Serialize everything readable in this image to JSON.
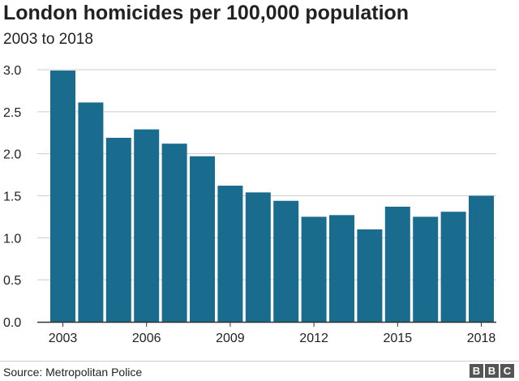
{
  "header": {
    "title": "London homicides per 100,000 population",
    "subtitle": "2003 to 2018"
  },
  "footer": {
    "source": "Source: Metropolitan Police",
    "logo_letters": [
      "B",
      "B",
      "C"
    ]
  },
  "colors": {
    "bar": "#1a6c8e",
    "grid": "#cccccc",
    "axis": "#333333"
  },
  "chart_data": {
    "type": "bar",
    "title": "London homicides per 100,000 population",
    "subtitle": "2003 to 2018",
    "categories": [
      "2003",
      "2004",
      "2005",
      "2006",
      "2007",
      "2008",
      "2009",
      "2010",
      "2011",
      "2012",
      "2013",
      "2014",
      "2015",
      "2016",
      "2017",
      "2018"
    ],
    "values": [
      2.99,
      2.61,
      2.19,
      2.29,
      2.12,
      1.97,
      1.62,
      1.54,
      1.44,
      1.25,
      1.27,
      1.1,
      1.37,
      1.25,
      1.31,
      1.5
    ],
    "x_tick_labels": [
      "2003",
      "2006",
      "2009",
      "2012",
      "2015",
      "2018"
    ],
    "y_ticks": [
      0.0,
      0.5,
      1.0,
      1.5,
      2.0,
      2.5,
      3.0
    ],
    "y_tick_labels": [
      "0.0",
      "0.5",
      "1.0",
      "1.5",
      "2.0",
      "2.5",
      "3.0"
    ],
    "ylim": [
      0,
      3.0
    ],
    "xlabel": "",
    "ylabel": "",
    "grid": true,
    "legend": "none"
  }
}
